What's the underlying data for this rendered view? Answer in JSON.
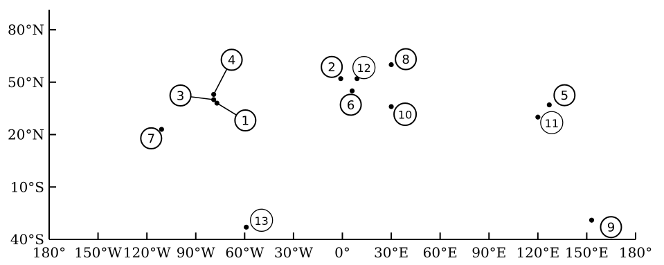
{
  "axes": {
    "x_ticks": [
      {
        "label": "180°",
        "lon": -180
      },
      {
        "label": "150°W",
        "lon": -150
      },
      {
        "label": "120°W",
        "lon": -120
      },
      {
        "label": "90°W",
        "lon": -90
      },
      {
        "label": "60°W",
        "lon": -60
      },
      {
        "label": "30°W",
        "lon": -30
      },
      {
        "label": "0°",
        "lon": 0
      },
      {
        "label": "30°E",
        "lon": 30
      },
      {
        "label": "60°E",
        "lon": 60
      },
      {
        "label": "90°E",
        "lon": 90
      },
      {
        "label": "120°E",
        "lon": 120
      },
      {
        "label": "150°E",
        "lon": 150
      },
      {
        "label": "180°",
        "lon": 180
      }
    ],
    "y_ticks": [
      {
        "label": "80°N",
        "lat": 80
      },
      {
        "label": "50°N",
        "lat": 50
      },
      {
        "label": "20°N",
        "lat": 20
      },
      {
        "label": "10°S",
        "lat": -10
      },
      {
        "label": "40°S",
        "lat": -40
      }
    ]
  },
  "sites": [
    {
      "id": "1",
      "lon": -77,
      "lat": 38,
      "badge_style": "bold"
    },
    {
      "id": "2",
      "lon": -1,
      "lat": 52,
      "badge_style": "bold"
    },
    {
      "id": "3",
      "lon": -79,
      "lat": 40,
      "badge_style": "bold"
    },
    {
      "id": "4",
      "lon": -79,
      "lat": 43,
      "badge_style": "bold"
    },
    {
      "id": "5",
      "lon": 127,
      "lat": 37,
      "badge_style": "bold"
    },
    {
      "id": "6",
      "lon": 6,
      "lat": 45,
      "badge_style": "bold"
    },
    {
      "id": "7",
      "lon": -111,
      "lat": 23,
      "badge_style": "bold"
    },
    {
      "id": "8",
      "lon": 30,
      "lat": 60,
      "badge_style": "bold"
    },
    {
      "id": "9",
      "lon": 153,
      "lat": -29,
      "badge_style": "bold"
    },
    {
      "id": "10",
      "lon": 30,
      "lat": 36,
      "badge_style": "bold"
    },
    {
      "id": "11",
      "lon": 120,
      "lat": 30,
      "badge_style": "thin"
    },
    {
      "id": "12",
      "lon": 9,
      "lat": 52,
      "badge_style": "thin"
    },
    {
      "id": "13",
      "lon": -59,
      "lat": -33,
      "badge_style": "thin"
    }
  ],
  "colors": {
    "ink": "#000000",
    "background": "#ffffff"
  }
}
